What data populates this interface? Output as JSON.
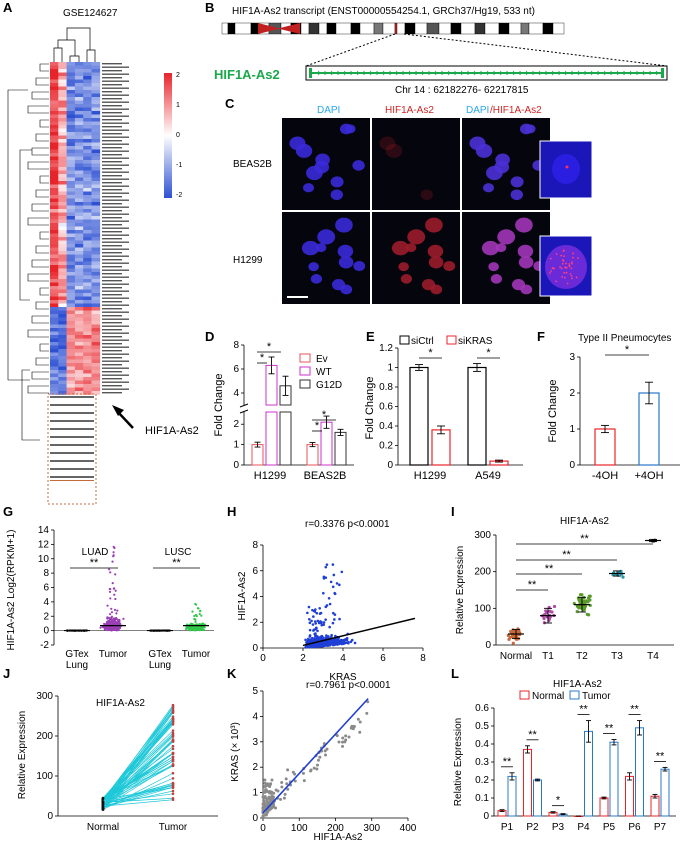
{
  "panel_letters": [
    "A",
    "B",
    "C",
    "D",
    "E",
    "F",
    "G",
    "H",
    "I",
    "J",
    "K",
    "L"
  ],
  "panel_a": {
    "title": "GSE124627",
    "colorbar_ticks": [
      "2",
      "1",
      "0",
      "-1",
      "-2"
    ],
    "arrow_label": "HIF1A-As2",
    "colors": {
      "high": "#e8242b",
      "mid": "#ffffff",
      "low": "#2d50d2"
    }
  },
  "panel_b": {
    "transcript_title": "HIF1A-As2 transcript (ENST00000554254.1, GRCh37/Hg19, 533 nt)",
    "gene_label": "HIF1A-As2",
    "coords": "Chr 14 : 62182276- 62217815",
    "gene_color": "#1aa84a"
  },
  "panel_c": {
    "col_titles": [
      "DAPI",
      "HIF1A-As2",
      "DAPI",
      "/HIF1A-As2"
    ],
    "row_labels": [
      "BEAS2B",
      "H1299"
    ]
  },
  "chart_data": [
    {
      "panel": "D",
      "type": "bar",
      "categories": [
        "H1299",
        "BEAS2B"
      ],
      "series": [
        {
          "name": "Ev",
          "values": [
            1.0,
            1.0
          ],
          "err": [
            0.12,
            0.1
          ],
          "color": "#e8545a"
        },
        {
          "name": "WT",
          "values": [
            6.3,
            2.1
          ],
          "err": [
            0.7,
            0.3
          ],
          "color": "#cc33cc"
        },
        {
          "name": "G12D",
          "values": [
            4.6,
            1.6
          ],
          "err": [
            0.8,
            0.15
          ],
          "color": "#333333"
        }
      ],
      "ylabel": "Fold Change",
      "yticks_upper": [
        "4",
        "6",
        "8"
      ],
      "yticks_lower": [
        "0",
        "1",
        "2"
      ],
      "sig": [
        "*",
        "*",
        "*",
        "*"
      ]
    },
    {
      "panel": "E",
      "type": "bar",
      "categories": [
        "H1299",
        "A549"
      ],
      "series": [
        {
          "name": "siCtrl",
          "values": [
            1.0,
            1.0
          ],
          "err": [
            0.03,
            0.04
          ],
          "color": "#000000"
        },
        {
          "name": "siKRAS",
          "values": [
            0.36,
            0.04
          ],
          "err": [
            0.04,
            0.01
          ],
          "color": "#e8242b"
        }
      ],
      "ylabel": "Fold Change",
      "ylim": [
        0,
        1.2
      ],
      "yticks": [
        "0",
        "0.2",
        "0.4",
        "0.6",
        "0.8",
        "1",
        "1.2"
      ],
      "sig": [
        "*",
        "*"
      ]
    },
    {
      "panel": "F",
      "type": "bar",
      "title": "Type II Pneumocytes",
      "categories": [
        "-4OH",
        "+4OH"
      ],
      "values": [
        1.0,
        2.0
      ],
      "err": [
        0.1,
        0.3
      ],
      "colors": [
        "#e8242b",
        "#2878c8"
      ],
      "ylabel": "Fold Change",
      "ylim": [
        0,
        3
      ],
      "yticks": [
        "0",
        "1",
        "2",
        "3"
      ],
      "sig": [
        "*"
      ]
    },
    {
      "panel": "G",
      "type": "scatter",
      "groups": [
        "LUAD",
        "LUSC"
      ],
      "categories": [
        "GTex\nLung",
        "Tumor",
        "GTex\nLung",
        "Tumor"
      ],
      "xlabels": [
        [
          "GTex",
          "Lung"
        ],
        [
          "Tumor"
        ],
        [
          "GTex",
          "Lung"
        ],
        [
          "Tumor"
        ]
      ],
      "colors": [
        "#222222",
        "#9b3fb5",
        "#222222",
        "#33c84b"
      ],
      "ylabel": "HIF1A-As2  Log2(RPKM+1)",
      "ylim": [
        -2,
        14
      ],
      "yticks": [
        "-2",
        "0",
        "2",
        "4",
        "6",
        "8",
        "10",
        "12",
        "14"
      ],
      "sig": [
        "**",
        "**"
      ]
    },
    {
      "panel": "H",
      "type": "scatter",
      "annotation": "r=0.3376 p<0.0001",
      "xlabel": "KRAS",
      "ylabel": "HIF1A-As2",
      "xlim": [
        0,
        8
      ],
      "ylim": [
        0,
        8
      ],
      "xticks": [
        "0",
        "2",
        "4",
        "6",
        "8"
      ],
      "yticks": [
        "0",
        "2",
        "4",
        "6",
        "8"
      ],
      "fit": [
        [
          2,
          0.2
        ],
        [
          7.6,
          2.3
        ]
      ],
      "point_color": "#1f3fd6"
    },
    {
      "panel": "I",
      "type": "scatter",
      "title": "HIF1A-As2",
      "categories": [
        "Normal",
        "T1",
        "T2",
        "T3",
        "T4"
      ],
      "values": [
        30,
        80,
        110,
        195,
        285
      ],
      "err": [
        12,
        20,
        20,
        7,
        3
      ],
      "colors": [
        "#c76a3b",
        "#b04aa6",
        "#5a9a2a",
        "#1f9aa8",
        "#222222"
      ],
      "ylabel": "Relative Expression",
      "ylim": [
        0,
        300
      ],
      "yticks": [
        "0",
        "100",
        "200",
        "300"
      ],
      "sig": [
        "**",
        "**",
        "**",
        "**"
      ]
    },
    {
      "panel": "J",
      "type": "line",
      "title": "HIF1A-As2",
      "categories": [
        "Normal",
        "Tumor"
      ],
      "ylabel": "Relative Expression",
      "ylim": [
        0,
        300
      ],
      "yticks": [
        "0",
        "100",
        "200",
        "300"
      ],
      "line_color": "#1ec8d8"
    },
    {
      "panel": "K",
      "type": "scatter",
      "annotation": "r=0.7961 p<0.0001",
      "xlabel": "HIF1A-As2",
      "ylabel": "KRAS (× 10³)",
      "xlim": [
        0,
        400
      ],
      "ylim": [
        0,
        5
      ],
      "xticks": [
        "0",
        "100",
        "200",
        "300",
        "400"
      ],
      "yticks": [
        "0",
        "1",
        "2",
        "3",
        "4",
        "5"
      ],
      "fit": [
        [
          0,
          0.2
        ],
        [
          290,
          4.7
        ]
      ],
      "point_color": "#8a8a8a"
    },
    {
      "panel": "L",
      "type": "bar",
      "title": "HIF1A-As2",
      "categories": [
        "P1",
        "P2",
        "P3",
        "P4",
        "P5",
        "P6",
        "P7"
      ],
      "series": [
        {
          "name": "Normal",
          "values": [
            0.03,
            0.37,
            0.02,
            0.0,
            0.1,
            0.22,
            0.11
          ],
          "err": [
            0.005,
            0.02,
            0.004,
            0,
            0.005,
            0.02,
            0.01
          ],
          "color": "#e8242b"
        },
        {
          "name": "Tumor",
          "values": [
            0.22,
            0.2,
            0.01,
            0.47,
            0.41,
            0.49,
            0.26
          ],
          "err": [
            0.02,
            0.005,
            0.003,
            0.06,
            0.015,
            0.04,
            0.01
          ],
          "color": "#2878c8"
        }
      ],
      "ylabel": "Relative Expression",
      "ylim": [
        0,
        0.6
      ],
      "yticks": [
        "0",
        "0.1",
        "0.2",
        "0.3",
        "0.4",
        "0.5",
        "0.6"
      ],
      "sig": [
        "**",
        "**",
        "*",
        "**",
        "**",
        "**",
        "**"
      ]
    }
  ]
}
